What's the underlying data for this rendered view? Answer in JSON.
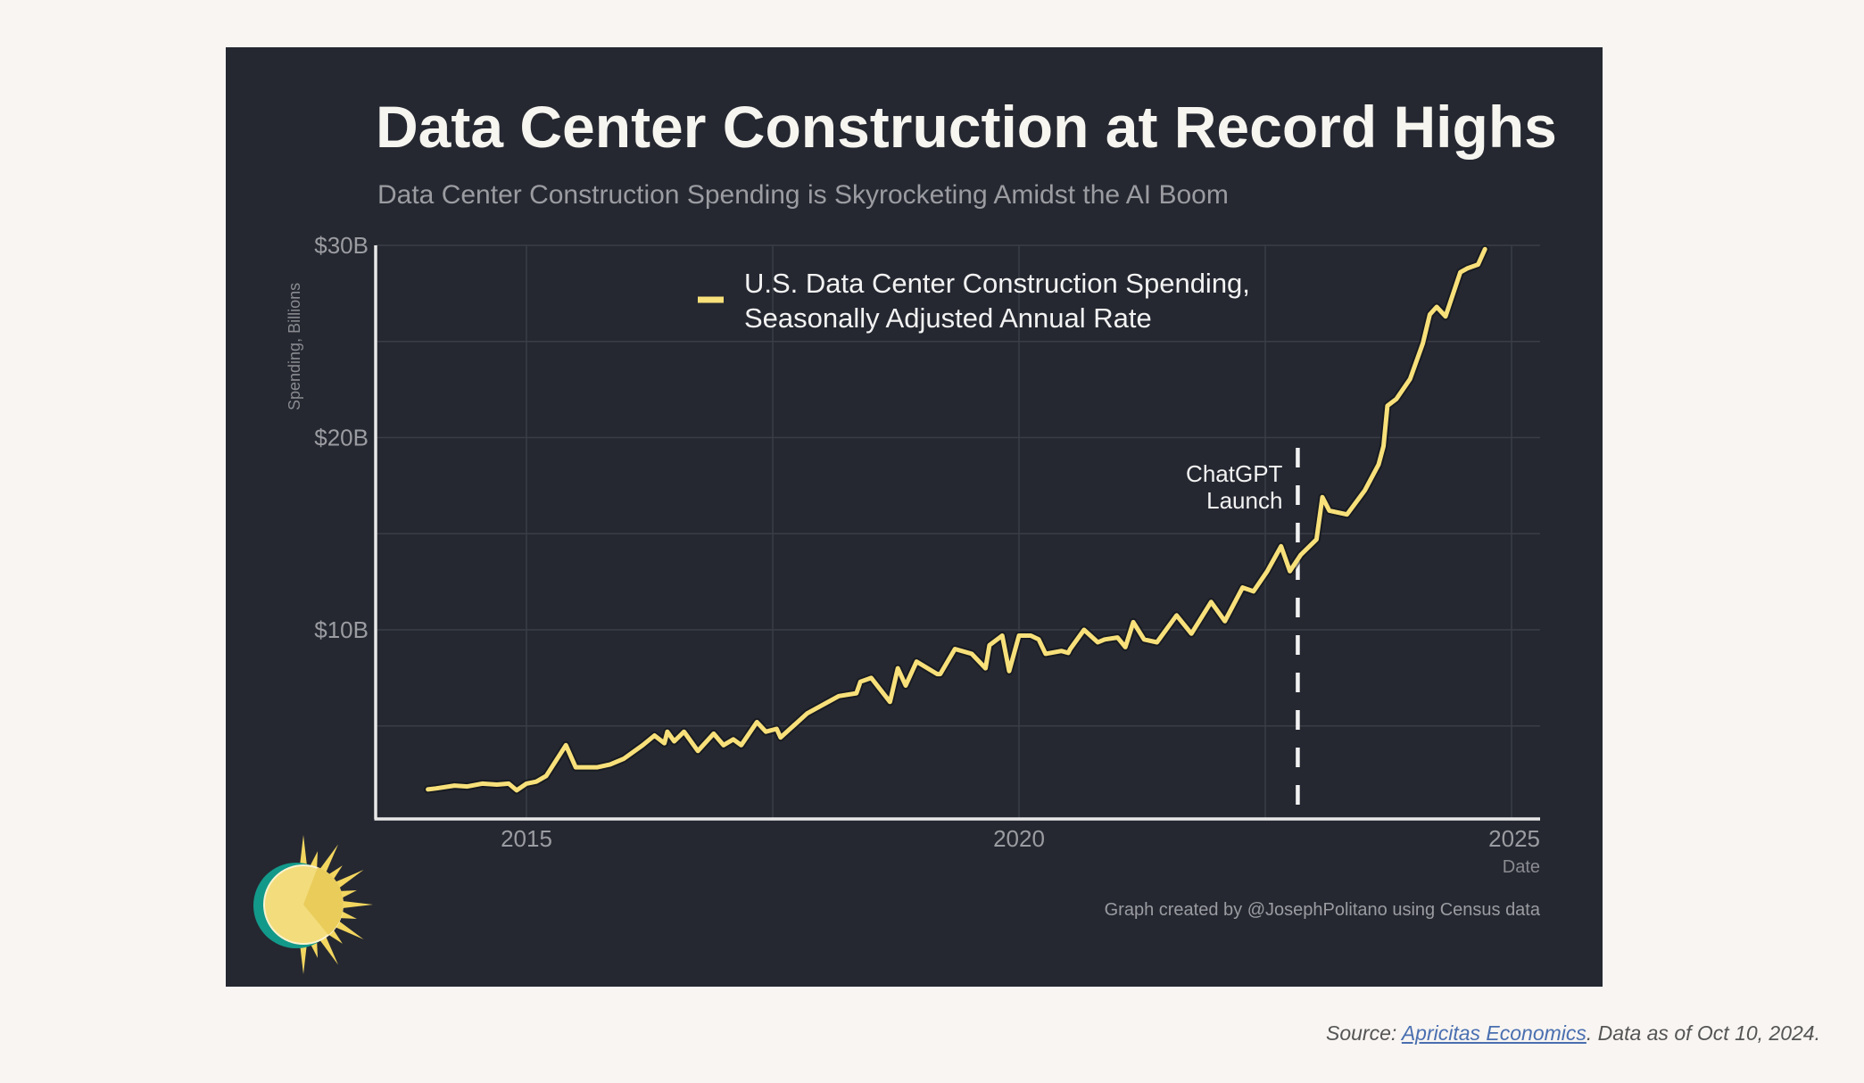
{
  "chart_data": {
    "type": "line",
    "title": "Data Center Construction at Record Highs",
    "subtitle": "Data Center Construction Spending is Skyrocketing Amidst the AI Boom",
    "xlabel": "Date",
    "ylabel": "Spending, Billions",
    "xlim": [
      2013.6,
      2025.3
    ],
    "ylim": [
      0,
      30
    ],
    "x_ticks": [
      2015,
      2020,
      2025
    ],
    "x_tick_labels": [
      "2015",
      "2020",
      "2025"
    ],
    "x_gridlines": [
      2015,
      2017.5,
      2020,
      2022.5,
      2025
    ],
    "y_ticks": [
      10,
      20,
      30
    ],
    "y_tick_labels": [
      "$10B",
      "$20B",
      "$30B"
    ],
    "y_gridlines": [
      5,
      10,
      15,
      20,
      25,
      30
    ],
    "grid": true,
    "legend": {
      "placement": "top-center",
      "entries": [
        {
          "lines": [
            "U.S. Data Center Construction Spending,",
            "Seasonally Adjusted Annual Rate"
          ],
          "color": "#f8e07a"
        }
      ]
    },
    "annotations": [
      {
        "x": 2022.83,
        "style": "dashed-vertical",
        "lines": [
          "ChatGPT",
          "Launch"
        ]
      }
    ],
    "series": [
      {
        "name": "U.S. Data Center Construction Spending, Seasonally Adjusted Annual Rate",
        "color": "#f8e07a",
        "x": [
          2014.0,
          2014.08,
          2014.27,
          2014.4,
          2014.55,
          2014.7,
          2014.82,
          2014.9,
          2015.0,
          2015.1,
          2015.2,
          2015.4,
          2015.5,
          2015.72,
          2015.85,
          2015.99,
          2016.18,
          2016.3,
          2016.4,
          2016.43,
          2016.5,
          2016.6,
          2016.74,
          2016.9,
          2017.0,
          2017.1,
          2017.18,
          2017.34,
          2017.43,
          2017.54,
          2017.58,
          2017.85,
          2018.17,
          2018.35,
          2018.39,
          2018.5,
          2018.69,
          2018.77,
          2018.85,
          2018.96,
          2019.17,
          2019.2,
          2019.35,
          2019.52,
          2019.66,
          2019.7,
          2019.83,
          2019.9,
          2020.0,
          2020.12,
          2020.2,
          2020.27,
          2020.43,
          2020.5,
          2020.52,
          2020.66,
          2020.8,
          2020.87,
          2021.0,
          2021.08,
          2021.16,
          2021.27,
          2021.4,
          2021.6,
          2021.75,
          2021.95,
          2022.09,
          2022.27,
          2022.38,
          2022.52,
          2022.66,
          2022.75,
          2022.86,
          2023.02,
          2023.08,
          2023.15,
          2023.33,
          2023.51,
          2023.65,
          2023.7,
          2023.74,
          2023.83,
          2023.97,
          2024.1,
          2024.17,
          2024.24,
          2024.33,
          2024.48,
          2024.55,
          2024.66,
          2024.73
        ],
        "values": [
          1.7,
          1.75,
          1.9,
          1.85,
          2.0,
          1.95,
          2.0,
          1.65,
          2.0,
          2.1,
          2.4,
          4.0,
          2.85,
          2.85,
          3.0,
          3.3,
          4.0,
          4.5,
          4.1,
          4.7,
          4.2,
          4.7,
          3.7,
          4.6,
          4.0,
          4.3,
          4.0,
          5.2,
          4.7,
          4.85,
          4.4,
          5.65,
          6.55,
          6.7,
          7.3,
          7.5,
          6.25,
          8.0,
          7.1,
          8.35,
          7.7,
          7.7,
          9.0,
          8.75,
          8.0,
          9.2,
          9.7,
          7.85,
          9.7,
          9.7,
          9.5,
          8.75,
          8.9,
          8.8,
          9.0,
          10.0,
          9.35,
          9.5,
          9.6,
          9.1,
          10.4,
          9.5,
          9.35,
          10.75,
          9.8,
          11.45,
          10.45,
          12.2,
          12.0,
          13.05,
          14.35,
          13.05,
          13.9,
          14.7,
          16.9,
          16.2,
          16.0,
          17.25,
          18.6,
          19.55,
          21.65,
          22.0,
          23.05,
          24.9,
          26.4,
          26.8,
          26.3,
          28.6,
          28.8,
          29.0,
          29.8
        ]
      }
    ],
    "credit": "Graph created by @JosephPolitano using Census data"
  },
  "caption": {
    "prefix": "Source: ",
    "link_text": "Apricitas Economics",
    "suffix": ". Data as of Oct 10, 2024."
  },
  "colors": {
    "page_background": "#f8f5f2",
    "panel_background": "#252831",
    "series": "#f8e07a",
    "link": "#4a6fb0",
    "logo_sun": "#f3dc7c",
    "logo_teal": "#12998a"
  },
  "logo": {
    "icon": "sun-logo-icon"
  }
}
